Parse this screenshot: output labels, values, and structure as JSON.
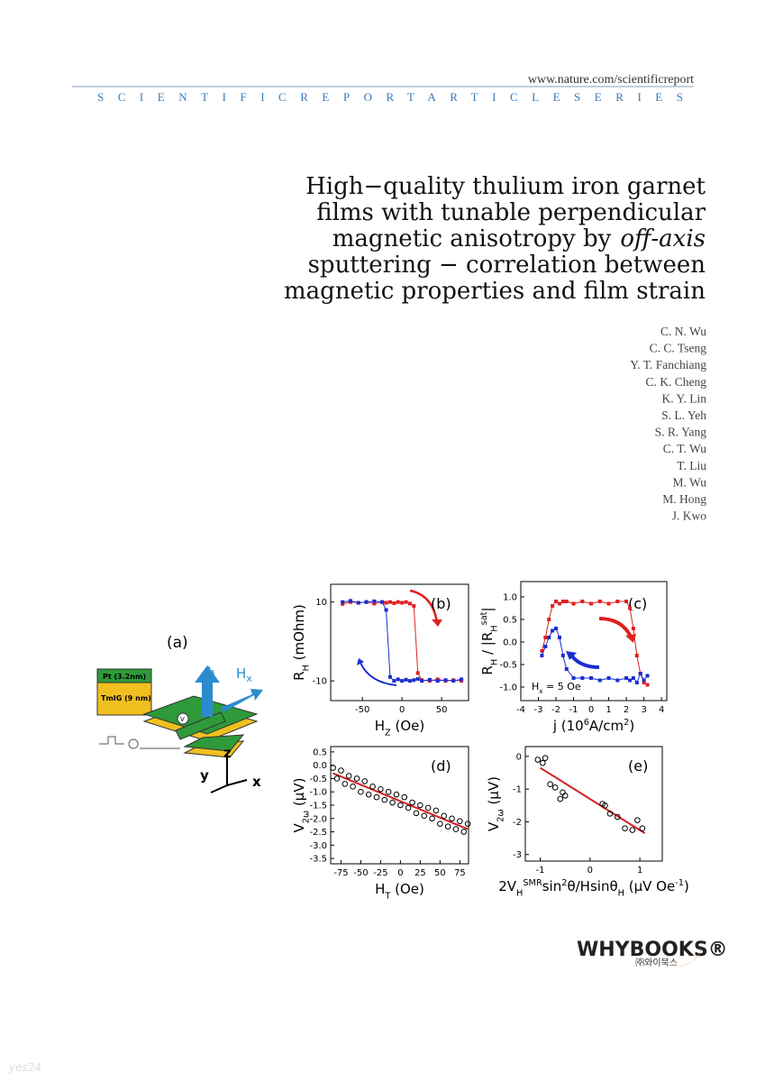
{
  "header": {
    "url": "www.nature.com/scientificreport",
    "series": "SCIENTIFICREPORTARTICLESERIES"
  },
  "title": [
    "High−quality thulium iron garnet",
    "films with tunable perpendicular",
    "magnetic anisotropy by",
    "off-axis",
    "sputtering − correlation between",
    "magnetic properties and film strain"
  ],
  "authors": [
    "C. N. Wu",
    "C. C. Tseng",
    "Y. T. Fanchiang",
    "C. K. Cheng",
    "K. Y. Lin",
    "S. L. Yeh",
    "S. R. Yang",
    "C. T. Wu",
    "T. Liu",
    "M. Wu",
    "M. Hong",
    "J. Kwo"
  ],
  "panel_a": {
    "label": "(a)",
    "pt": "Pt (3.2nm)",
    "tmig": "TmIG (9 nm)",
    "m": "m̂",
    "h": "H",
    "h_sub": "x",
    "z": "z",
    "y": "y",
    "x": "x",
    "v": "V"
  },
  "chart_data": [
    {
      "type": "line",
      "panel_label": "(b)",
      "xlabel": [
        {
          "t": "H"
        },
        {
          "t": "Z",
          "s": "sub"
        },
        {
          "t": " (Oe)"
        }
      ],
      "ylabel": [
        {
          "t": "R"
        },
        {
          "t": "H",
          "s": "sub"
        },
        {
          "t": " (mOhm)"
        }
      ],
      "xlim": [
        -90,
        84
      ],
      "xticks": [
        -50,
        0,
        50
      ],
      "ylim": [
        -15,
        14.5
      ],
      "yticks": [
        -10,
        10
      ],
      "x": [
        -75,
        -65,
        -55,
        -45,
        -35,
        -25,
        -20,
        -15,
        -10,
        -5,
        0,
        5,
        10,
        15,
        20,
        25,
        35,
        45,
        55,
        65,
        75
      ],
      "series": [
        {
          "color": "#e02020",
          "values": [
            9.5,
            10,
            9.8,
            10,
            9.6,
            10,
            9.8,
            10,
            9.7,
            10,
            9.8,
            10,
            9.6,
            9,
            -8,
            -9.8,
            -10,
            -9.6,
            -10,
            -9.8,
            -10
          ]
        },
        {
          "color": "#1a2ed0",
          "values": [
            10,
            10.3,
            9.8,
            10,
            10.2,
            10,
            8,
            -9,
            -10,
            -9.6,
            -10,
            -9.7,
            -10,
            -9.8,
            -9.5,
            -10,
            -9.7,
            -10,
            -9.8,
            -10,
            -9.6
          ]
        }
      ]
    },
    {
      "type": "line",
      "panel_label": "(c)",
      "note": [
        {
          "t": "H"
        },
        {
          "t": "x",
          "s": "sub"
        },
        {
          "t": " = 5 Oe"
        }
      ],
      "xlabel": [
        {
          "t": "j (10"
        },
        {
          "t": "6",
          "s": "sup"
        },
        {
          "t": "A/cm"
        },
        {
          "t": "2",
          "s": "sup"
        },
        {
          "t": ")"
        }
      ],
      "ylabel": [
        {
          "t": "R"
        },
        {
          "t": "H",
          "s": "sub"
        },
        {
          "t": " / |R"
        },
        {
          "t": "H",
          "s": "sub"
        },
        {
          "t": "sat",
          "s": "sup"
        },
        {
          "t": "|"
        }
      ],
      "xlim": [
        -4,
        4.3
      ],
      "xticks": [
        -4,
        -3,
        -2,
        -1,
        0,
        1,
        2,
        3,
        4
      ],
      "ylim": [
        -1.3,
        1.34
      ],
      "yticks": [
        {
          "value": -1,
          "label": "-1.0"
        },
        -0.5,
        {
          "value": 0,
          "label": "0.0"
        },
        0.5,
        {
          "value": 1,
          "label": "1.0"
        }
      ],
      "x": [
        -2.8,
        -2.6,
        -2.4,
        -2.2,
        -2.0,
        -1.8,
        -1.6,
        -1.4,
        -1.0,
        -0.5,
        0,
        0.5,
        1.0,
        1.5,
        2.0,
        2.2,
        2.4,
        2.6,
        2.8,
        3.0,
        3.2
      ],
      "series": [
        {
          "color": "#e02020",
          "values": [
            -0.2,
            0.1,
            0.5,
            0.8,
            0.9,
            0.85,
            0.9,
            0.9,
            0.85,
            0.9,
            0.85,
            0.9,
            0.85,
            0.9,
            0.9,
            0.75,
            0.3,
            -0.3,
            -0.7,
            -0.9,
            -0.95
          ]
        },
        {
          "color": "#1a2ed0",
          "values": [
            -0.3,
            -0.1,
            0.1,
            0.25,
            0.3,
            0.1,
            -0.3,
            -0.6,
            -0.8,
            -0.8,
            -0.8,
            -0.85,
            -0.8,
            -0.85,
            -0.8,
            -0.85,
            -0.8,
            -0.9,
            -0.7,
            -0.85,
            -0.75
          ]
        }
      ]
    },
    {
      "type": "scatter",
      "panel_label": "(d)",
      "xlabel": [
        {
          "t": "H"
        },
        {
          "t": "T",
          "s": "sub"
        },
        {
          "t": " (Oe)"
        }
      ],
      "ylabel": [
        {
          "t": "V"
        },
        {
          "t": "2ω",
          "s": "sub"
        },
        {
          "t": " (μV)"
        }
      ],
      "xlim": [
        -88,
        86
      ],
      "xticks": [
        -75,
        -50,
        -25,
        0,
        25,
        50,
        75
      ],
      "ylim": [
        -3.7,
        0.7
      ],
      "yticks": [
        0.5,
        {
          "value": 0,
          "label": "0.0"
        },
        -0.5,
        {
          "value": -1,
          "label": "-1.0"
        },
        -1.5,
        {
          "value": -2,
          "label": "-2.0"
        },
        -2.5,
        {
          "value": -3,
          "label": "-3.0"
        },
        -3.5
      ],
      "x": [
        -85,
        -80,
        -75,
        -70,
        -65,
        -60,
        -55,
        -50,
        -45,
        -40,
        -35,
        -30,
        -25,
        -20,
        -15,
        -10,
        -5,
        0,
        5,
        10,
        15,
        20,
        25,
        30,
        35,
        40,
        45,
        50,
        55,
        60,
        65,
        70,
        75,
        80,
        85
      ],
      "series": [
        {
          "color": "#000000",
          "values": [
            -0.1,
            -0.5,
            -0.2,
            -0.7,
            -0.4,
            -0.8,
            -0.5,
            -1.0,
            -0.6,
            -1.1,
            -0.8,
            -1.2,
            -0.9,
            -1.3,
            -1.0,
            -1.4,
            -1.1,
            -1.5,
            -1.2,
            -1.6,
            -1.4,
            -1.8,
            -1.5,
            -1.9,
            -1.6,
            -2.0,
            -1.7,
            -2.2,
            -1.9,
            -2.3,
            -2.0,
            -2.4,
            -2.1,
            -2.5,
            -2.2
          ]
        }
      ],
      "fit": {
        "color": "#d42020",
        "x": [
          -85,
          85
        ],
        "y": [
          -0.3,
          -2.4
        ]
      }
    },
    {
      "type": "scatter",
      "panel_label": "(e)",
      "xlabel": [
        {
          "t": "2V"
        },
        {
          "t": "H",
          "s": "sub"
        },
        {
          "t": "SMR",
          "s": "sup"
        },
        {
          "t": "sin"
        },
        {
          "t": "2",
          "s": "sup"
        },
        {
          "t": "θ/Hsinθ"
        },
        {
          "t": "H",
          "s": "sub"
        },
        {
          "t": " (μV Oe"
        },
        {
          "t": "-1",
          "s": "sup"
        },
        {
          "t": ")"
        }
      ],
      "ylabel": [
        {
          "t": "V"
        },
        {
          "t": "2ω",
          "s": "sub"
        },
        {
          "t": " (μV)"
        }
      ],
      "xlim": [
        -1.3,
        1.45
      ],
      "xticks": [
        -1,
        0,
        1
      ],
      "ylim": [
        -3.2,
        0.3
      ],
      "yticks": [
        0,
        -1,
        -2,
        -3
      ],
      "x": [
        -1.05,
        -0.95,
        -0.9,
        -0.8,
        -0.7,
        -0.6,
        -0.55,
        -0.5,
        0.25,
        0.3,
        0.4,
        0.55,
        0.7,
        0.85,
        0.95,
        1.05
      ],
      "series": [
        {
          "color": "#000000",
          "values": [
            -0.1,
            -0.2,
            -0.05,
            -0.85,
            -0.95,
            -1.3,
            -1.1,
            -1.2,
            -1.45,
            -1.5,
            -1.75,
            -1.85,
            -2.2,
            -2.25,
            -1.95,
            -2.2
          ]
        }
      ],
      "fit": {
        "color": "#d42020",
        "x": [
          -1,
          1.1
        ],
        "y": [
          -0.35,
          -2.35
        ]
      }
    }
  ],
  "publisher": {
    "name": "WHYBOOKS®",
    "korean": "㈜와이북스"
  },
  "watermark": "yes24"
}
